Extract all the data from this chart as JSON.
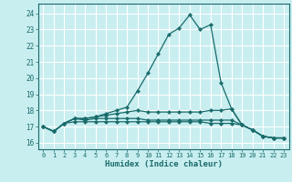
{
  "title": "",
  "xlabel": "Humidex (Indice chaleur)",
  "xlim": [
    -0.5,
    23.5
  ],
  "ylim": [
    15.6,
    24.6
  ],
  "yticks": [
    16,
    17,
    18,
    19,
    20,
    21,
    22,
    23,
    24
  ],
  "xticks": [
    0,
    1,
    2,
    3,
    4,
    5,
    6,
    7,
    8,
    9,
    10,
    11,
    12,
    13,
    14,
    15,
    16,
    17,
    18,
    19,
    20,
    21,
    22,
    23
  ],
  "bg_color": "#c8eef0",
  "grid_color": "#ffffff",
  "line_color": "#1a6b6b",
  "lines": [
    [
      17.0,
      16.7,
      17.2,
      17.5,
      17.5,
      17.6,
      17.8,
      18.0,
      18.2,
      19.2,
      20.3,
      21.5,
      22.7,
      23.1,
      23.9,
      23.0,
      23.3,
      19.7,
      18.1,
      17.1,
      16.8,
      16.4,
      16.3,
      16.3
    ],
    [
      17.0,
      16.7,
      17.2,
      17.5,
      17.5,
      17.6,
      17.7,
      17.8,
      17.9,
      18.0,
      17.9,
      17.9,
      17.9,
      17.9,
      17.9,
      17.9,
      18.0,
      18.0,
      18.1,
      17.1,
      16.8,
      16.4,
      16.3,
      16.3
    ],
    [
      17.0,
      16.7,
      17.2,
      17.5,
      17.4,
      17.5,
      17.5,
      17.5,
      17.5,
      17.5,
      17.4,
      17.4,
      17.4,
      17.4,
      17.4,
      17.4,
      17.4,
      17.4,
      17.4,
      17.1,
      16.8,
      16.4,
      16.3,
      16.3
    ],
    [
      17.0,
      16.7,
      17.2,
      17.3,
      17.3,
      17.3,
      17.3,
      17.3,
      17.3,
      17.3,
      17.3,
      17.3,
      17.3,
      17.3,
      17.3,
      17.3,
      17.2,
      17.2,
      17.2,
      17.1,
      16.8,
      16.4,
      16.3,
      16.3
    ]
  ]
}
